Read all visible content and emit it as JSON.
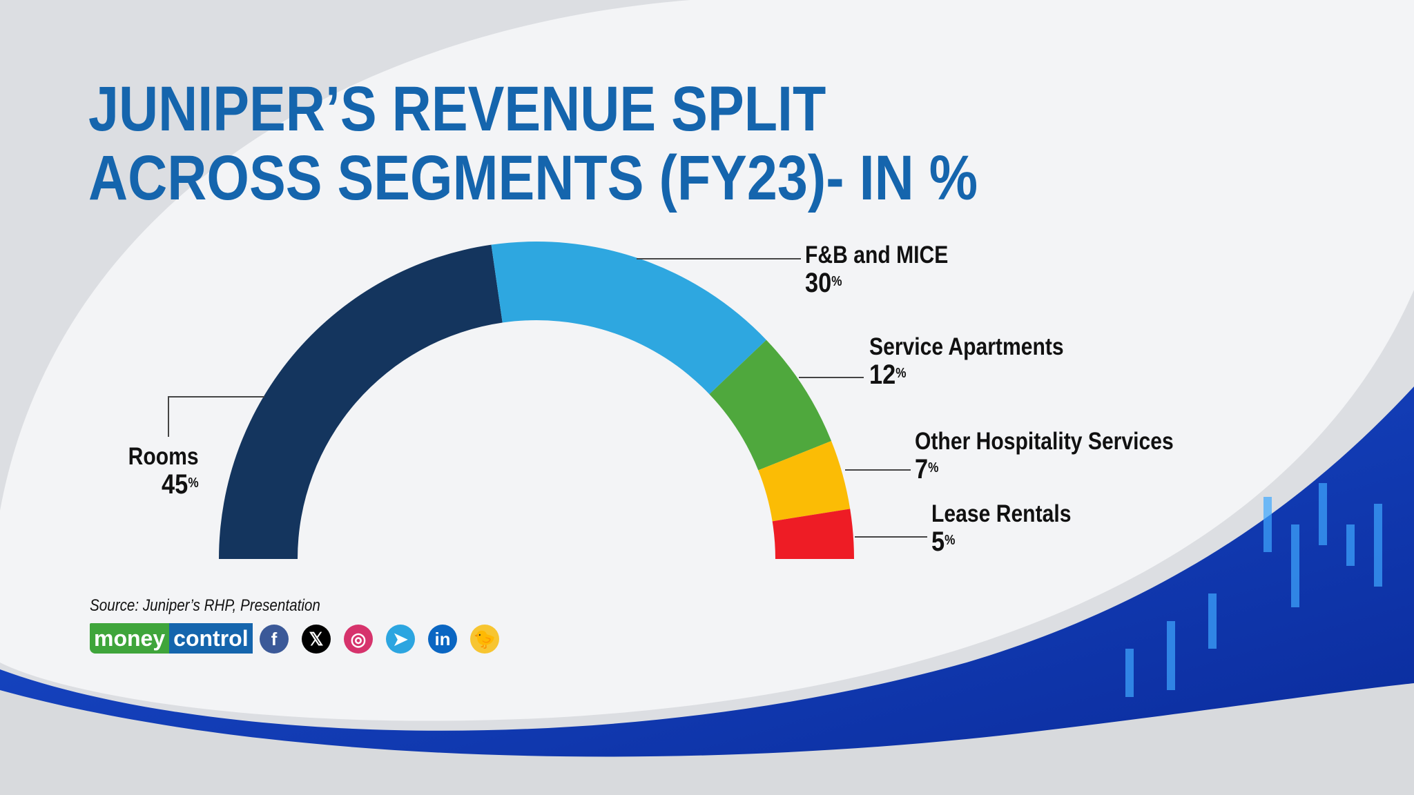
{
  "title_lines": [
    "JUNIPER’S REVENUE SPLIT",
    "ACROSS SEGMENTS (FY23)- IN %"
  ],
  "source": "Source: Juniper’s RHP, Presentation",
  "brand": {
    "part1": "money",
    "part2": "control",
    "green": "#3fa53b",
    "blue": "#1565ad"
  },
  "social_icons": [
    {
      "name": "facebook-icon",
      "glyph": "f",
      "color": "#3b5998"
    },
    {
      "name": "x-icon",
      "glyph": "𝕏",
      "color": "#000000"
    },
    {
      "name": "instagram-icon",
      "glyph": "◎",
      "color": "#d6336c"
    },
    {
      "name": "telegram-icon",
      "glyph": "➤",
      "color": "#2ca5e0"
    },
    {
      "name": "linkedin-icon",
      "glyph": "in",
      "color": "#0a66c2"
    },
    {
      "name": "koo-icon",
      "glyph": "🐤",
      "color": "#f7c531"
    }
  ],
  "chart_data": {
    "type": "pie",
    "variant": "semi-circle donut",
    "title": "JUNIPER’S REVENUE SPLIT ACROSS SEGMENTS (FY23)- IN %",
    "unit": "%",
    "slices": [
      {
        "label": "Rooms",
        "value": 45,
        "color": "#14355e"
      },
      {
        "label": "F&B and MICE",
        "value": 30,
        "color": "#2ea7e0"
      },
      {
        "label": "Service Apartments",
        "value": 12,
        "color": "#4fa83d"
      },
      {
        "label": "Other Hospitality Services",
        "value": 7,
        "color": "#fbbc05"
      },
      {
        "label": "Lease Rentals",
        "value": 5,
        "color": "#ee1c25"
      }
    ]
  }
}
